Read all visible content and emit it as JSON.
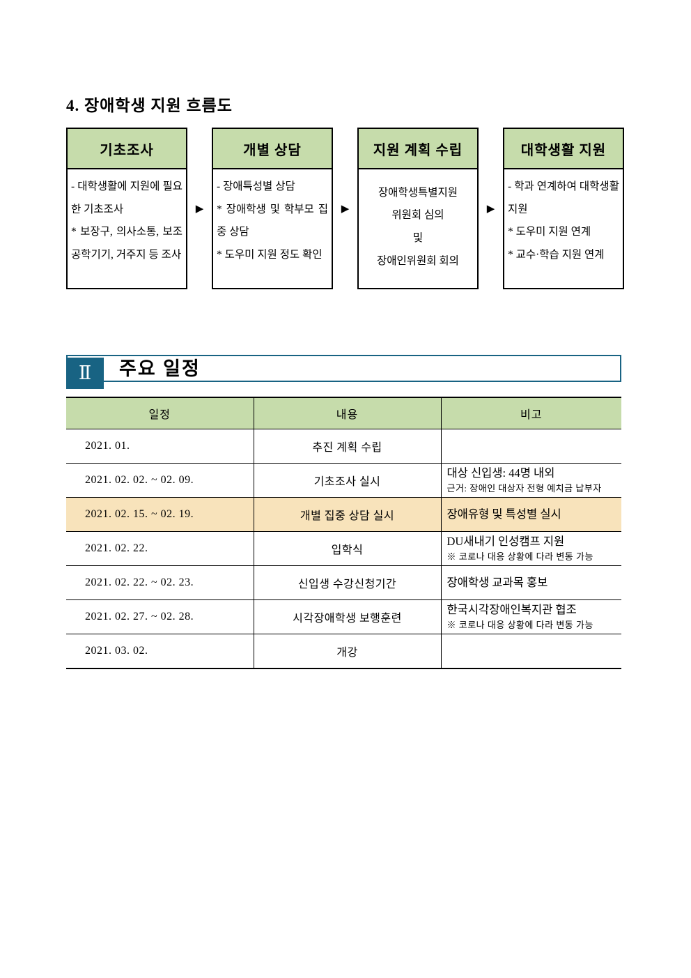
{
  "colors": {
    "green_header": "#c6dcab",
    "highlight_row": "#f8e3bb",
    "banner_blue": "#186383",
    "border_black": "#000000"
  },
  "section4": {
    "title": "4. 장애학생 지원 흐름도"
  },
  "flowchart": {
    "arrow": "▶",
    "steps": [
      {
        "title": "기초조사",
        "body": "- 대학생활에 지원에 필요한 기초조사\n * 보장구, 의사소통, 보조공학기기, 거주지 등 조사",
        "align": "justify"
      },
      {
        "title": "개별 상담",
        "body": "- 장애특성별 상담\n * 장애학생 및 학부모 집중 상담\n * 도우미 지원 정도 확인",
        "align": "justify"
      },
      {
        "title": "지원 계획 수립",
        "body": "장애학생특별지원\n위원회 심의\n및\n장애인위원회 회의",
        "align": "center"
      },
      {
        "title": "대학생활 지원",
        "body": "- 학과 연계하여 대학생활 지원\n * 도우미 지원 연계\n * 교수·학습 지원 연계",
        "align": "justify"
      }
    ]
  },
  "section2": {
    "numeral": "Ⅱ",
    "title": "주요 일정"
  },
  "schedule_table": {
    "headers": [
      "일정",
      "내용",
      "비고"
    ],
    "rows": [
      {
        "date": "2021. 01.",
        "content": "추진 계획 수립",
        "remark": "",
        "remark_small": "",
        "highlight": false
      },
      {
        "date": "2021. 02. 02. ~ 02. 09.",
        "content": "기초조사 실시",
        "remark": "대상 신입생: 44명 내외",
        "remark_small": "근거: 장애인 대상자 전형 예치금 납부자",
        "highlight": false
      },
      {
        "date": "2021. 02. 15. ~ 02. 19.",
        "content": "개별 집중 상담 실시",
        "remark": "장애유형 및 특성별 실시",
        "remark_small": "",
        "highlight": true
      },
      {
        "date": "2021. 02. 22.",
        "content": "입학식",
        "remark": "DU새내기 인성캠프 지원",
        "remark_small": "※ 코로나 대응 상황에 다라 변동 가능",
        "highlight": false
      },
      {
        "date": "2021. 02. 22. ~ 02. 23.",
        "content": "신입생 수강신청기간",
        "remark": "장애학생 교과목 홍보",
        "remark_small": "",
        "highlight": false
      },
      {
        "date": "2021. 02. 27. ~ 02. 28.",
        "content": "시각장애학생 보행훈련",
        "remark": "한국시각장애인복지관 협조",
        "remark_small": "※ 코로나 대응 상황에 다라 변동 가능",
        "highlight": false
      },
      {
        "date": "2021. 03. 02.",
        "content": "개강",
        "remark": "",
        "remark_small": "",
        "highlight": false
      }
    ]
  }
}
